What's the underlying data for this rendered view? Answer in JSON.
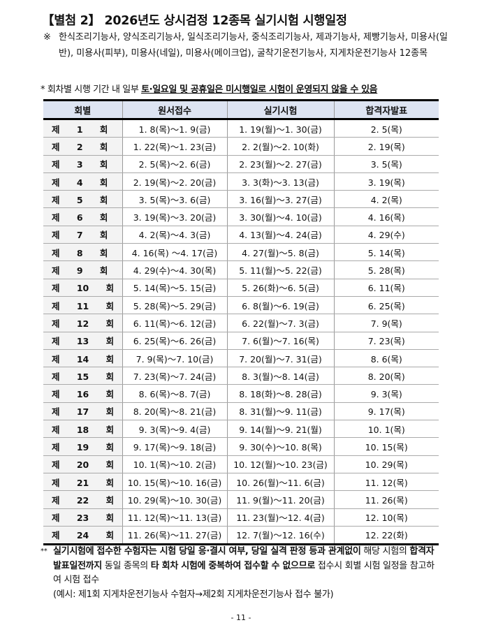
{
  "title": "【별첨 2】 2026년도 상시검정 12종목 실기시험 시행일정",
  "note": {
    "mark": "※",
    "text": "한식조리기능사, 양식조리기능사, 일식조리기능사, 중식조리기능사, 제과기능사, 제빵기능사, 미용사(일반), 미용사(피부), 미용사(네일), 미용사(메이크업), 굴착기운전기능사, 지게차운전기능사 12종목"
  },
  "star_note": {
    "mark": "*",
    "plain": "회차별 시행 기간 내 일부 ",
    "underlined": "토·일요일 및 공휴일은 미시행일로 시험이 운영되지 않을 수 있음"
  },
  "table": {
    "headers": [
      "회별",
      "원서접수",
      "실기시험",
      "합격자발표"
    ],
    "rows": [
      [
        "제 1 회",
        "1. 8(목)～1. 9(금)",
        "1. 19(월)～1. 30(금)",
        "2. 5(목)"
      ],
      [
        "제 2 회",
        "1. 22(목)～1. 23(금)",
        "2. 2(월)～2. 10(화)",
        "2. 19(목)"
      ],
      [
        "제 3 회",
        "2. 5(목)～2. 6(금)",
        "2. 23(월)～2. 27(금)",
        "3. 5(목)"
      ],
      [
        "제 4 회",
        "2. 19(목)～2. 20(금)",
        "3. 3(화)～3. 13(금)",
        "3. 19(목)"
      ],
      [
        "제 5 회",
        "3. 5(목)～3. 6(금)",
        "3. 16(월)～3. 27(금)",
        "4. 2(목)"
      ],
      [
        "제 6 회",
        "3. 19(목)～3. 20(금)",
        "3. 30(월)～4. 10(금)",
        "4. 16(목)"
      ],
      [
        "제 7 회",
        "4. 2(목)～4. 3(금)",
        "4. 13(월)～4. 24(금)",
        "4. 29(수)"
      ],
      [
        "제 8 회",
        "4. 16(목) ～4. 17(금)",
        "4. 27(월)～5. 8(금)",
        "5. 14(목)"
      ],
      [
        "제 9 회",
        "4. 29(수)～4. 30(목)",
        "5. 11(월)～5. 22(금)",
        "5. 28(목)"
      ],
      [
        "제 10 회",
        "5. 14(목)～5. 15(금)",
        "5. 26(화)～6. 5(금)",
        "6. 11(목)"
      ],
      [
        "제 11 회",
        "5. 28(목)～5. 29(금)",
        "6. 8(월)～6. 19(금)",
        "6. 25(목)"
      ],
      [
        "제 12 회",
        "6. 11(목)～6. 12(금)",
        "6. 22(월)～7. 3(금)",
        "7. 9(목)"
      ],
      [
        "제 13 회",
        "6. 25(목)～6. 26(금)",
        "7. 6(월)～7. 16(목)",
        "7. 23(목)"
      ],
      [
        "제 14 회",
        "7. 9(목)～7. 10(금)",
        "7. 20(월)～7. 31(금)",
        "8. 6(목)"
      ],
      [
        "제 15 회",
        "7. 23(목)～7. 24(금)",
        "8. 3(월)～8. 14(금)",
        "8. 20(목)"
      ],
      [
        "제 16 회",
        "8. 6(목)～8. 7(금)",
        "8. 18(화)～8. 28(금)",
        "9. 3(목)"
      ],
      [
        "제 17 회",
        "8. 20(목)～8. 21(금)",
        "8. 31(월)～9. 11(금)",
        "9. 17(목)"
      ],
      [
        "제 18 회",
        "9. 3(목)～9. 4(금)",
        "9. 14(월)～9. 21(월)",
        "10. 1(목)"
      ],
      [
        "제 19 회",
        "9. 17(목)～9. 18(금)",
        "9. 30(수)～10. 8(목)",
        "10. 15(목)"
      ],
      [
        "제 20 회",
        "10. 1(목)～10. 2(금)",
        "10. 12(월)～10. 23(금)",
        "10. 29(목)"
      ],
      [
        "제 21 회",
        "10. 15(목)～10. 16(금)",
        "10. 26(월)～11. 6(금)",
        "11. 12(목)"
      ],
      [
        "제 22 회",
        "10. 29(목)～10. 30(금)",
        "11. 9(월)～11. 20(금)",
        "11. 26(목)"
      ],
      [
        "제 23 회",
        "11. 12(목)～11. 13(금)",
        "11. 23(월)～12. 4(금)",
        "12. 10(목)"
      ],
      [
        "제 24 회",
        "11. 26(목)～11. 27(금)",
        "12. 7(월)～12. 16(수)",
        "12. 22(화)"
      ]
    ]
  },
  "footnote": {
    "mark": "**",
    "bold1": "실기시험에 접수한 수험자는 시험 당일 응·결시 여부, 당일 실격 판정 등과 관계없이",
    "plain1": "해당 시험의 ",
    "bold2": "합격자 발표일전까지",
    "plain2": " 동일 종목의 ",
    "bold3": "타 회차 시험에 중복하여 접수할 수 없으므로",
    "plain3": " 접수시 회별 시험 일정을 참고하여 시험 접수",
    "example": "(예시: 제1회 지게차운전기능사 수험자→제2회 지게차운전기능사 접수 불가)"
  },
  "page_number": "- 11 -"
}
